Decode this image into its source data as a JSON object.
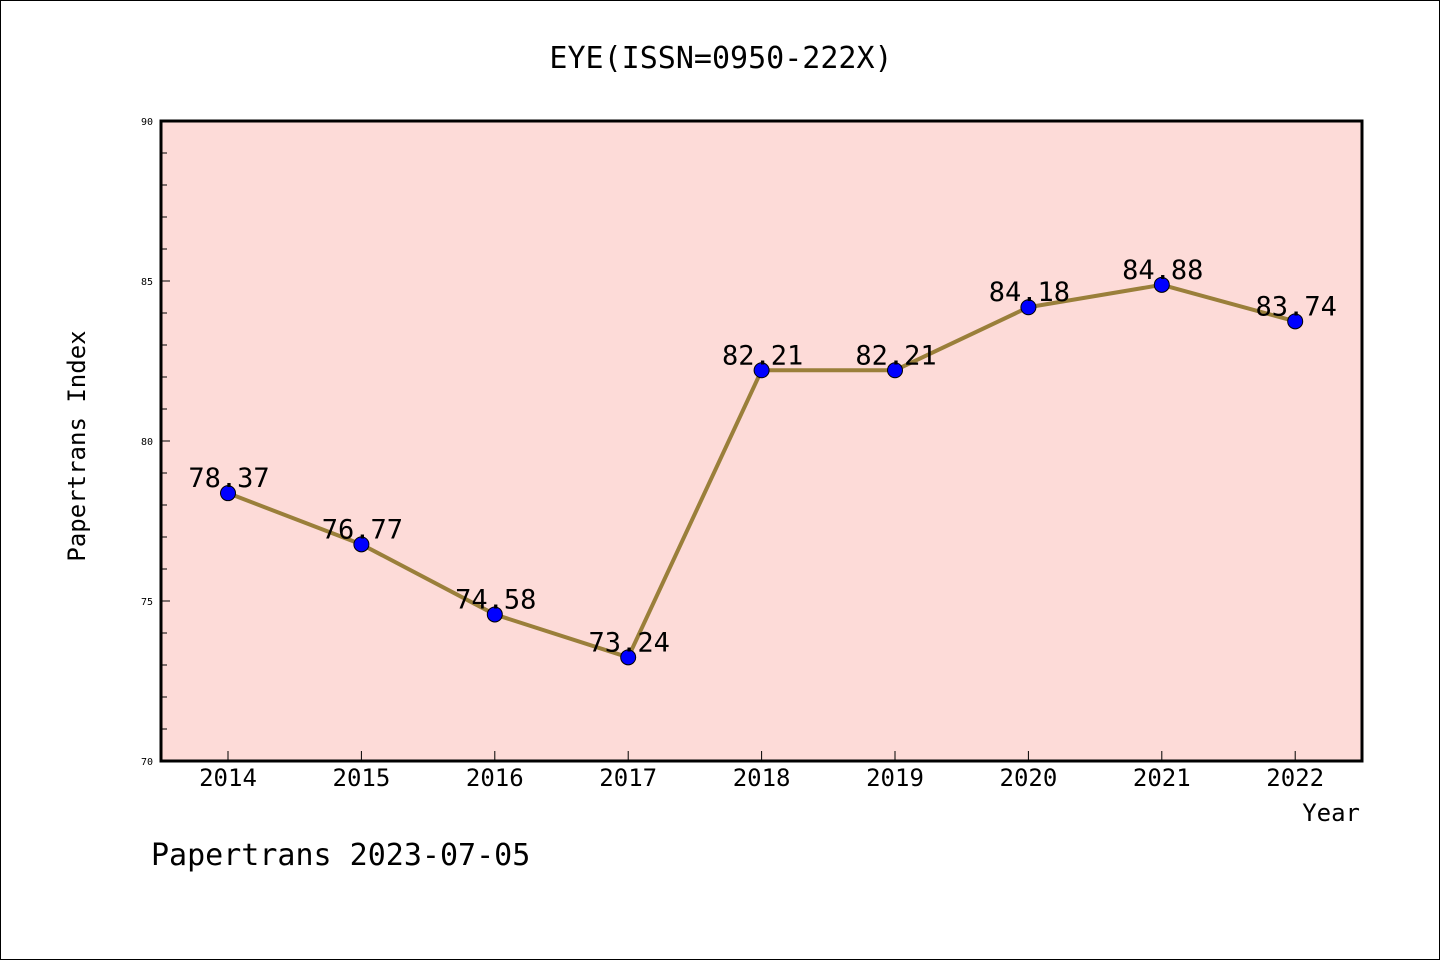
{
  "chart_data": {
    "type": "line",
    "title": "EYE(ISSN=0950-222X)",
    "xlabel": "Year",
    "ylabel": "Papertrans Index",
    "categories": [
      "2014",
      "2015",
      "2016",
      "2017",
      "2018",
      "2019",
      "2020",
      "2021",
      "2022"
    ],
    "series": [
      {
        "values": [
          78.37,
          76.77,
          74.58,
          73.24,
          82.21,
          82.21,
          84.18,
          84.88,
          83.74
        ],
        "labels": [
          "78.37",
          "76.77",
          "74.58",
          "73.24",
          "82.21",
          "82.21",
          "84.18",
          "84.88",
          "83.74"
        ]
      }
    ],
    "ylim": [
      70,
      90
    ],
    "yticks": [
      70,
      75,
      80,
      85,
      90
    ],
    "ytick_labels": [
      "70",
      "75",
      "80",
      "85",
      "90"
    ],
    "grid": false,
    "colors": {
      "plot_background": "#fddbd8",
      "line": "#9a7f3a",
      "marker": "#0000ff"
    }
  },
  "footer": "Papertrans 2023-07-05"
}
